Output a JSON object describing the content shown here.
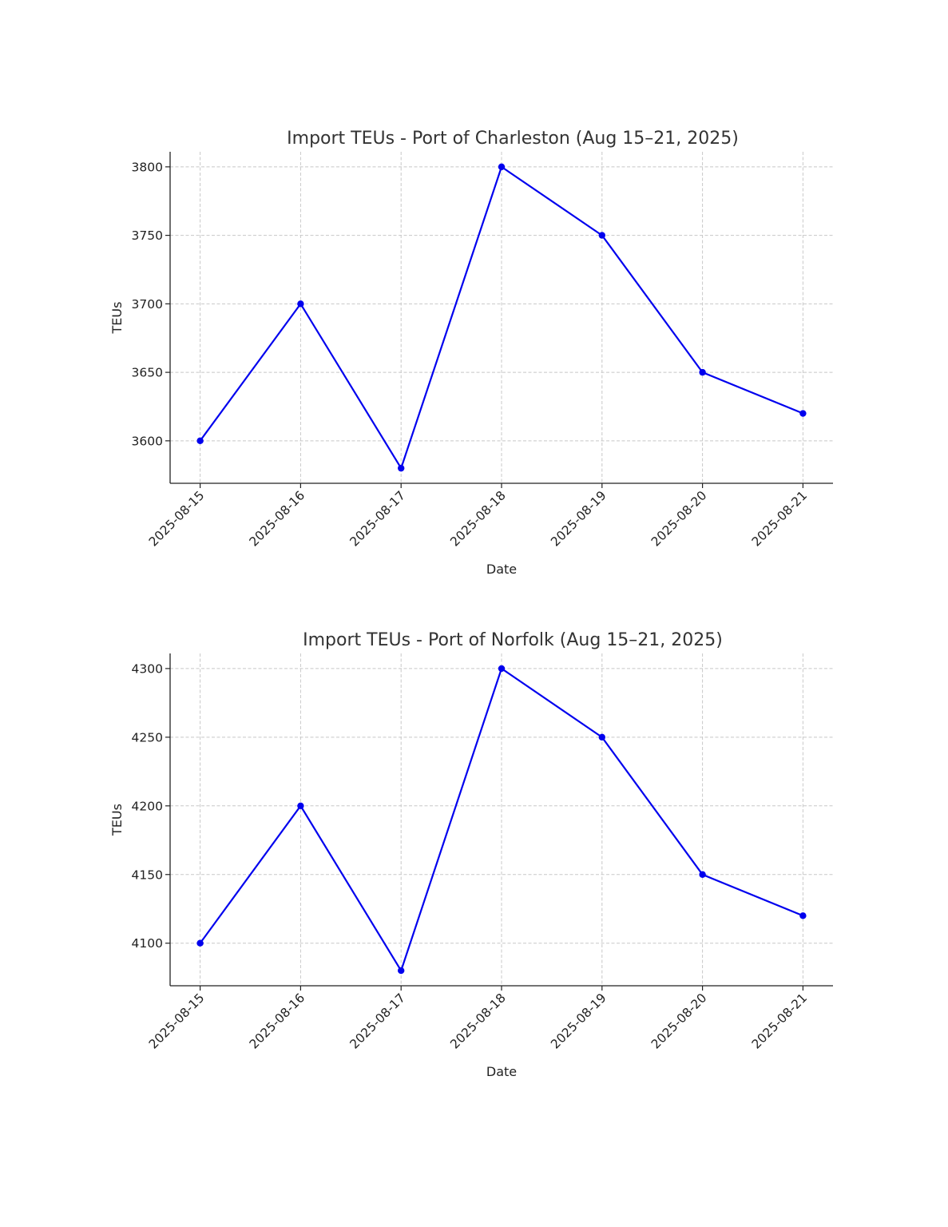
{
  "colors": {
    "series": "#0000ee",
    "title": "#333333",
    "grid": "#c8c8c8",
    "axis": "#222222"
  },
  "chart_data": [
    {
      "type": "line",
      "title": "Import TEUs - Port of Charleston (Aug 15–21, 2025)",
      "xlabel": "Date",
      "ylabel": "TEUs",
      "categories": [
        "2025-08-15",
        "2025-08-16",
        "2025-08-17",
        "2025-08-18",
        "2025-08-19",
        "2025-08-20",
        "2025-08-21"
      ],
      "series": [
        {
          "values": [
            3600,
            3700,
            3580,
            3800,
            3750,
            3650,
            3620
          ],
          "color": "#0000ee",
          "marker": "circle"
        }
      ],
      "yticks": [
        3600,
        3650,
        3700,
        3750,
        3800
      ],
      "ylim": [
        3569,
        3811
      ],
      "grid": true,
      "legend": false
    },
    {
      "type": "line",
      "title": "Import TEUs - Port of Norfolk (Aug 15–21, 2025)",
      "xlabel": "Date",
      "ylabel": "TEUs",
      "categories": [
        "2025-08-15",
        "2025-08-16",
        "2025-08-17",
        "2025-08-18",
        "2025-08-19",
        "2025-08-20",
        "2025-08-21"
      ],
      "series": [
        {
          "values": [
            4100,
            4200,
            4080,
            4300,
            4250,
            4150,
            4120
          ],
          "color": "#0000ee",
          "marker": "circle"
        }
      ],
      "yticks": [
        4100,
        4150,
        4200,
        4250,
        4300
      ],
      "ylim": [
        4069,
        4311
      ],
      "grid": true,
      "legend": false
    }
  ]
}
